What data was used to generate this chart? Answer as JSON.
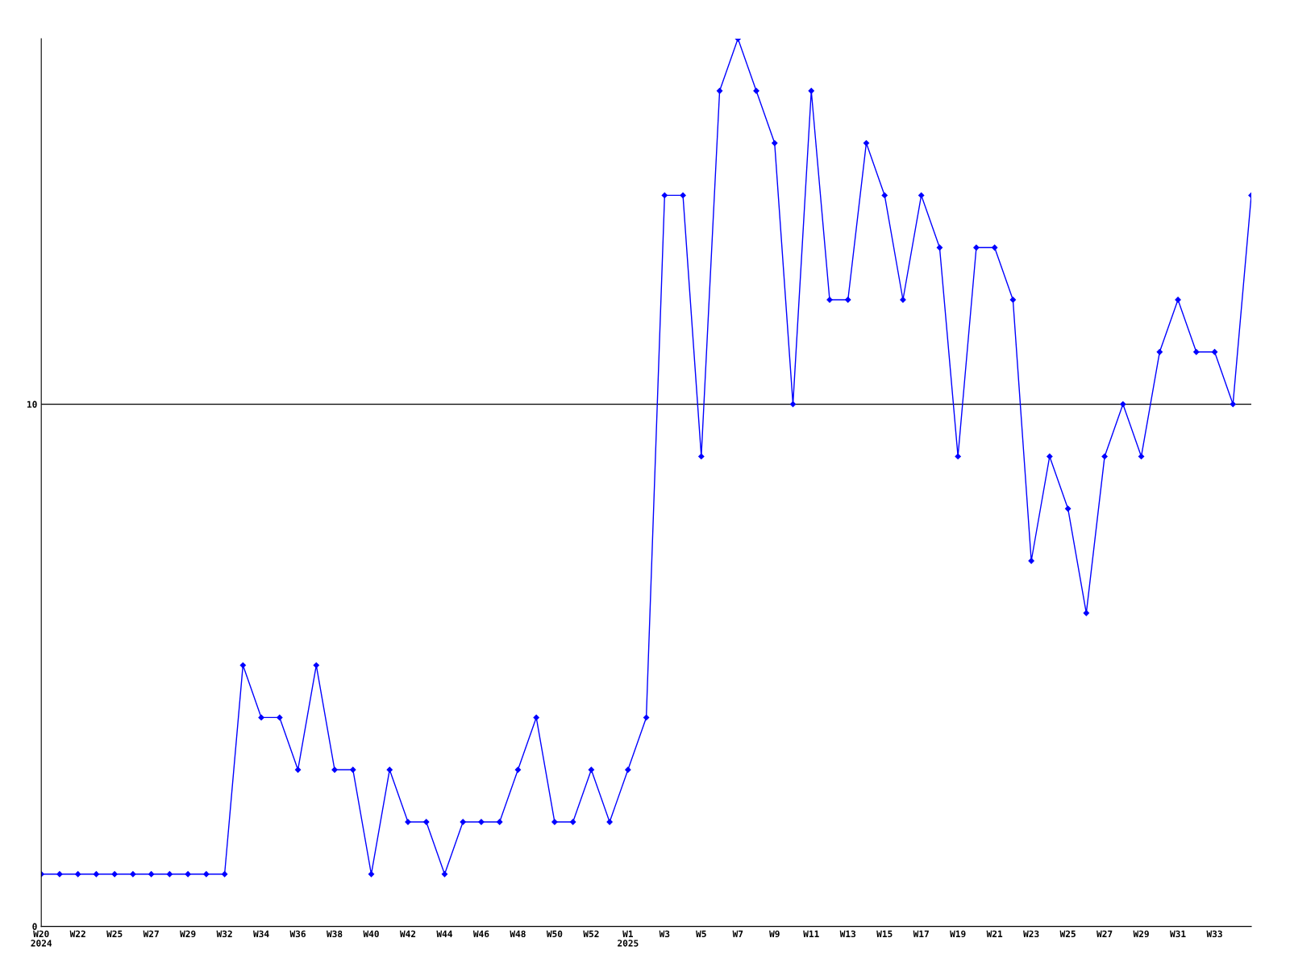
{
  "chart_data": {
    "type": "line",
    "categories": [
      "W20\n2024",
      null,
      "W22",
      null,
      "W25",
      null,
      "W27",
      null,
      "W29",
      null,
      "W32",
      null,
      "W34",
      null,
      "W36",
      null,
      "W38",
      null,
      "W40",
      null,
      "W42",
      null,
      "W44",
      null,
      "W46",
      null,
      "W48",
      null,
      "W50",
      null,
      "W52",
      null,
      "W1\n2025",
      null,
      "W3",
      null,
      "W5",
      null,
      "W7",
      null,
      "W9",
      null,
      "W11",
      null,
      "W13",
      null,
      "W15",
      null,
      "W17",
      null,
      "W19",
      null,
      "W21",
      null,
      "W23",
      null,
      "W25",
      null,
      "W27",
      null,
      "W29",
      null,
      "W31",
      null,
      "W33",
      null,
      null
    ],
    "series": [
      {
        "color": "#0000ff",
        "values": [
          1,
          1,
          1,
          1,
          1,
          1,
          1,
          1,
          1,
          1,
          1,
          5,
          4,
          4,
          3,
          5,
          3,
          3,
          1,
          3,
          2,
          2,
          1,
          2,
          2,
          2,
          3,
          4,
          2,
          2,
          3,
          2,
          3,
          4,
          14,
          14,
          9,
          16,
          17,
          16,
          15,
          10,
          16,
          12,
          12,
          15,
          14,
          12,
          14,
          13,
          9,
          13,
          13,
          12,
          7,
          9,
          8,
          6,
          9,
          10,
          9,
          11,
          12,
          11,
          11,
          10,
          14
        ]
      }
    ],
    "ylim": [
      0,
      17
    ],
    "yticks": [
      0,
      10
    ],
    "grid": "y",
    "marker": "diamond",
    "line_style": "solid",
    "legend": false
  }
}
